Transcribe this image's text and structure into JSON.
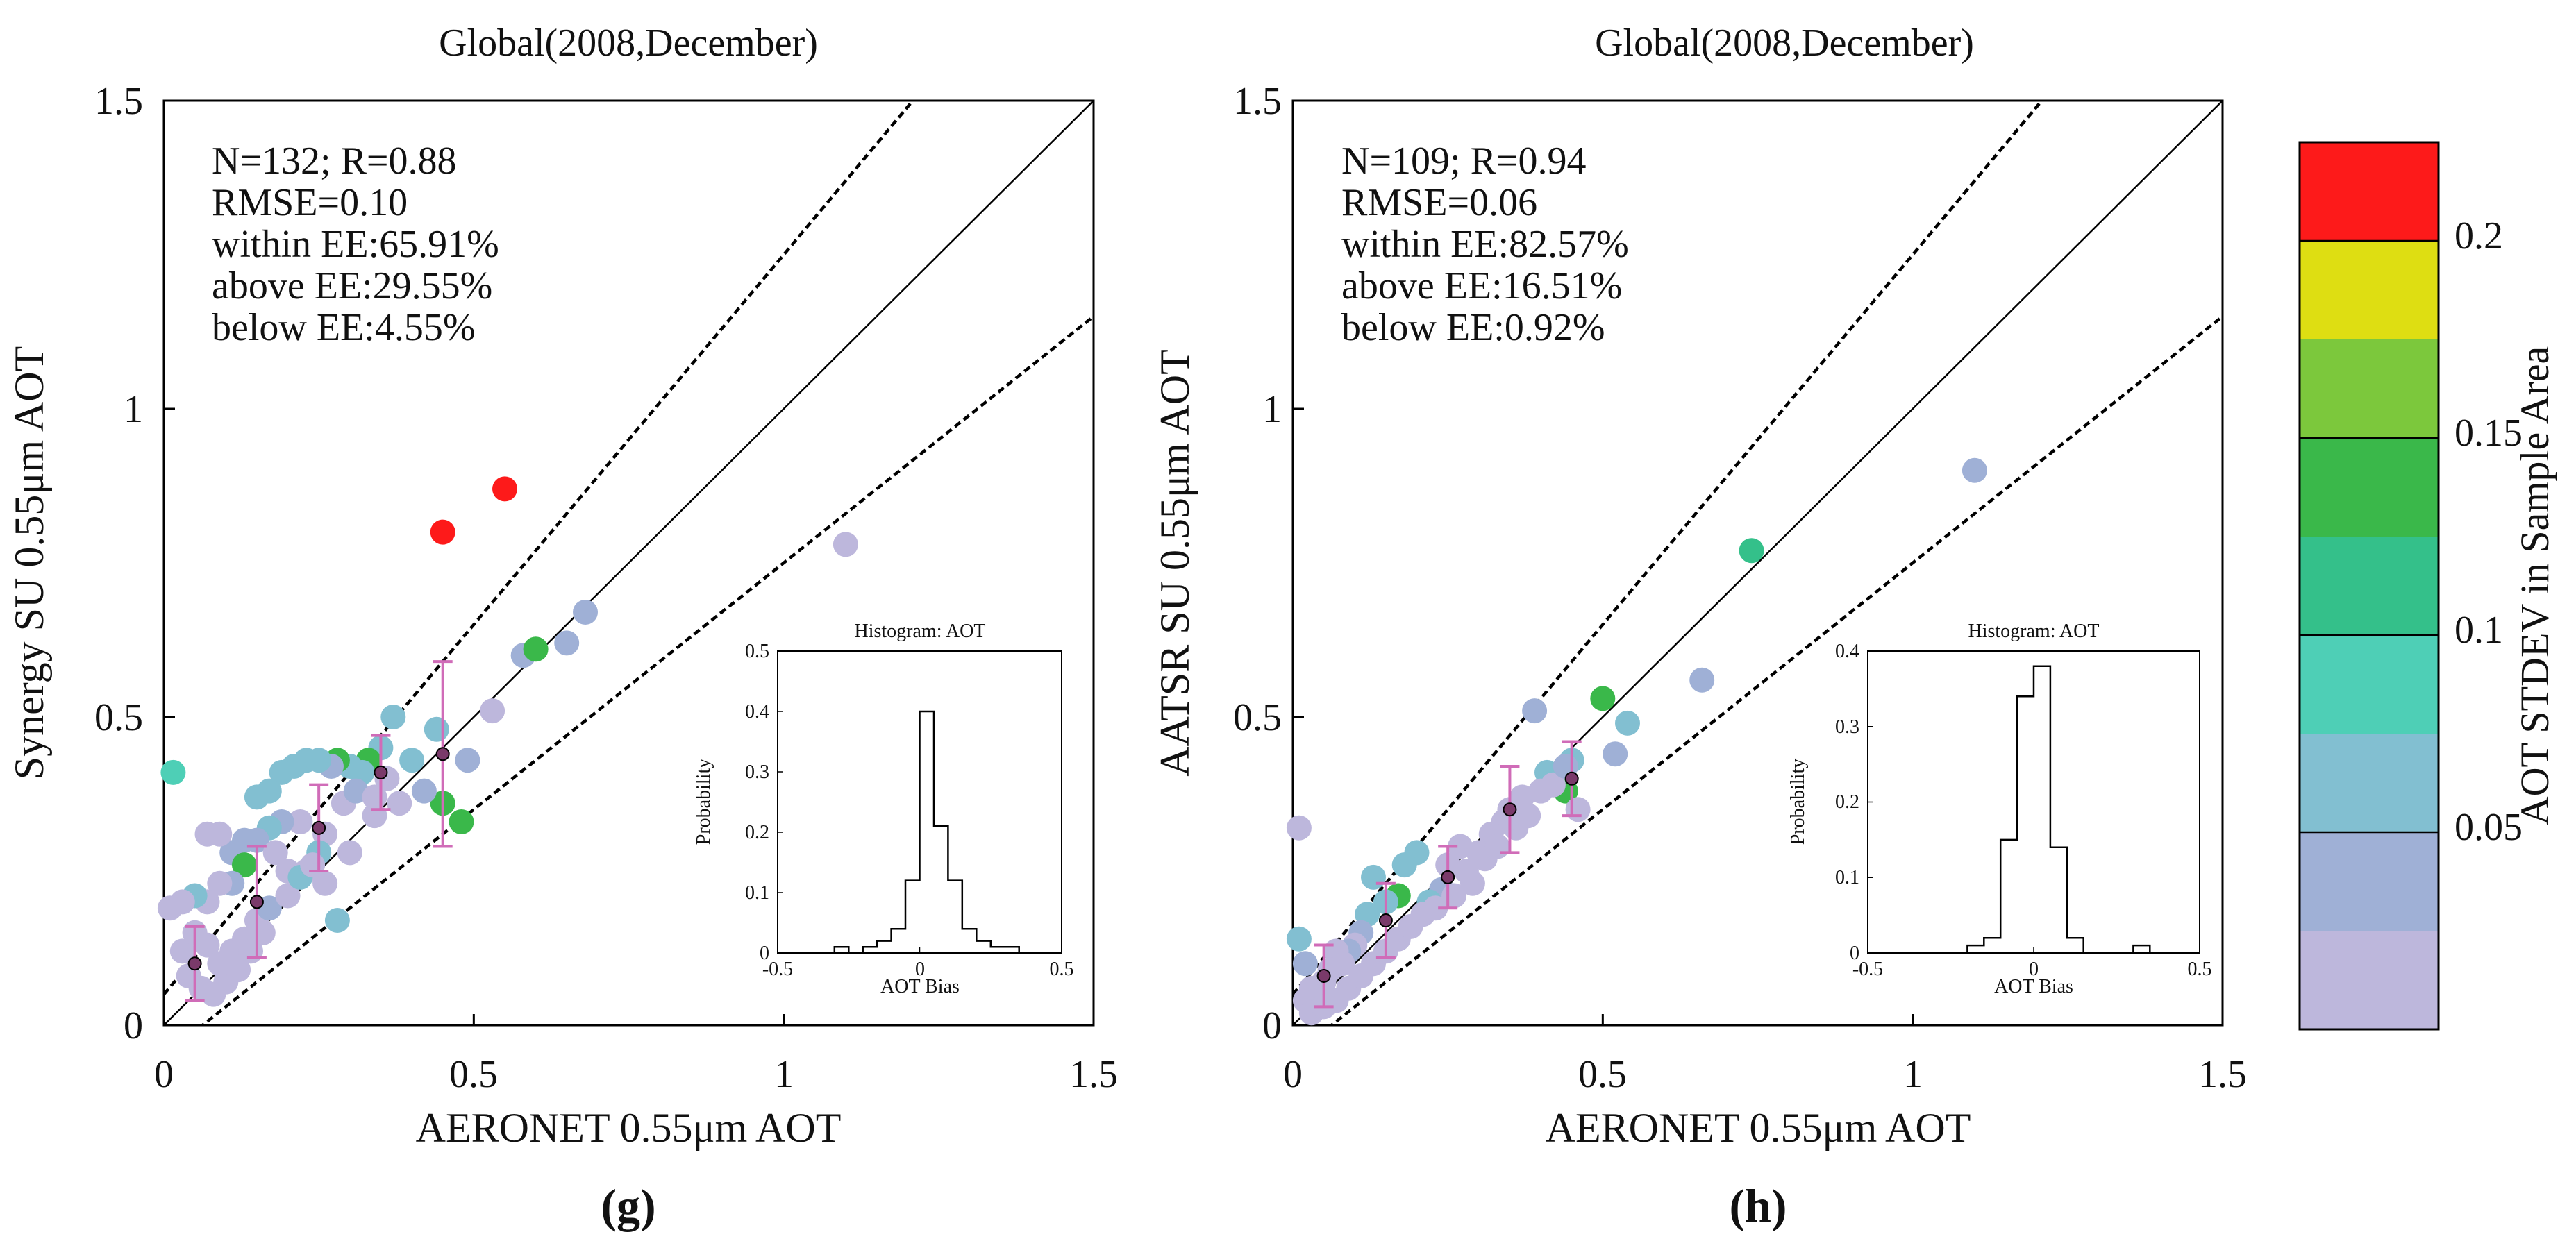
{
  "chart_data": [
    {
      "panel": "g",
      "type": "scatter",
      "title": "Global(2008,December)",
      "xlabel": "AERONET 0.55μm AOT",
      "ylabel": "Synergy SU 0.55μm AOT",
      "xlim": [
        0,
        1.5
      ],
      "ylim": [
        0,
        1.5
      ],
      "xticks": [
        "0",
        "0.5",
        "1",
        "1.5"
      ],
      "yticks": [
        "0",
        "0.5",
        "1",
        "1.5"
      ],
      "stats": [
        "N=132; R=0.88",
        "RMSE=0.10",
        "within EE:65.91%",
        "above EE:29.55%",
        "below EE:4.55%"
      ],
      "reference_lines": {
        "one_to_one": true,
        "ee_intercept": 0.05,
        "ee_slope": 0.2
      },
      "points": [
        [
          0.55,
          0.87,
          0.23
        ],
        [
          0.45,
          0.8,
          0.23
        ],
        [
          1.1,
          0.78,
          0.02
        ],
        [
          0.68,
          0.67,
          0.04
        ],
        [
          0.65,
          0.62,
          0.04
        ],
        [
          0.58,
          0.6,
          0.04
        ],
        [
          0.6,
          0.61,
          0.13
        ],
        [
          0.53,
          0.51,
          0.02
        ],
        [
          0.49,
          0.43,
          0.04
        ],
        [
          0.48,
          0.33,
          0.13
        ],
        [
          0.45,
          0.36,
          0.13
        ],
        [
          0.44,
          0.48,
          0.05
        ],
        [
          0.42,
          0.38,
          0.03
        ],
        [
          0.4,
          0.43,
          0.07
        ],
        [
          0.37,
          0.5,
          0.05
        ],
        [
          0.35,
          0.45,
          0.05
        ],
        [
          0.33,
          0.43,
          0.14
        ],
        [
          0.32,
          0.41,
          0.07
        ],
        [
          0.3,
          0.42,
          0.05
        ],
        [
          0.28,
          0.43,
          0.15
        ],
        [
          0.27,
          0.42,
          0.03
        ],
        [
          0.25,
          0.43,
          0.05
        ],
        [
          0.23,
          0.43,
          0.07
        ],
        [
          0.21,
          0.42,
          0.07
        ],
        [
          0.19,
          0.41,
          0.07
        ],
        [
          0.17,
          0.38,
          0.06
        ],
        [
          0.15,
          0.37,
          0.05
        ],
        [
          0.26,
          0.31,
          0.02
        ],
        [
          0.22,
          0.33,
          0.02
        ],
        [
          0.19,
          0.33,
          0.03
        ],
        [
          0.17,
          0.32,
          0.05
        ],
        [
          0.15,
          0.3,
          0.03
        ],
        [
          0.13,
          0.3,
          0.04
        ],
        [
          0.11,
          0.28,
          0.03
        ],
        [
          0.09,
          0.31,
          0.01
        ],
        [
          0.07,
          0.31,
          0.02
        ],
        [
          0.3,
          0.28,
          0.01
        ],
        [
          0.34,
          0.34,
          0.01
        ],
        [
          0.38,
          0.36,
          0.01
        ],
        [
          0.28,
          0.17,
          0.06
        ],
        [
          0.25,
          0.28,
          0.06
        ],
        [
          0.23,
          0.25,
          0.02
        ],
        [
          0.2,
          0.25,
          0.02
        ],
        [
          0.18,
          0.28,
          0.01
        ],
        [
          0.13,
          0.26,
          0.13
        ],
        [
          0.11,
          0.23,
          0.03
        ],
        [
          0.09,
          0.23,
          0.02
        ],
        [
          0.07,
          0.2,
          0.01
        ],
        [
          0.05,
          0.21,
          0.06
        ],
        [
          0.03,
          0.2,
          0.01
        ],
        [
          0.015,
          0.41,
          0.09
        ],
        [
          0.01,
          0.19,
          0.01
        ],
        [
          0.03,
          0.12,
          0.01
        ],
        [
          0.05,
          0.15,
          0.01
        ],
        [
          0.07,
          0.13,
          0.02
        ],
        [
          0.09,
          0.1,
          0.01
        ],
        [
          0.11,
          0.12,
          0.01
        ],
        [
          0.13,
          0.14,
          0.01
        ],
        [
          0.15,
          0.17,
          0.01
        ],
        [
          0.17,
          0.19,
          0.03
        ],
        [
          0.04,
          0.08,
          0.01
        ],
        [
          0.06,
          0.06,
          0.01
        ],
        [
          0.08,
          0.05,
          0.01
        ],
        [
          0.1,
          0.07,
          0.01
        ],
        [
          0.12,
          0.09,
          0.01
        ],
        [
          0.14,
          0.12,
          0.01
        ],
        [
          0.16,
          0.15,
          0.01
        ],
        [
          0.2,
          0.21,
          0.02
        ],
        [
          0.22,
          0.24,
          0.05
        ],
        [
          0.24,
          0.26,
          0.01
        ],
        [
          0.26,
          0.23,
          0.01
        ],
        [
          0.29,
          0.36,
          0.02
        ],
        [
          0.31,
          0.38,
          0.03
        ],
        [
          0.36,
          0.4,
          0.02
        ],
        [
          0.34,
          0.37,
          0.01
        ]
      ],
      "bin_means": [
        [
          0.05,
          0.1,
          0.06
        ],
        [
          0.15,
          0.2,
          0.09
        ],
        [
          0.25,
          0.32,
          0.07
        ],
        [
          0.35,
          0.41,
          0.06
        ],
        [
          0.45,
          0.44,
          0.15
        ]
      ],
      "inset": {
        "title": "Histogram: AOT",
        "xlabel": "AOT Bias",
        "ylabel": "Probability",
        "xlim": [
          -0.5,
          0.5
        ],
        "ylim": [
          0,
          0.5
        ],
        "xticks": [
          "-0.5",
          "0",
          "0.5"
        ],
        "yticks": [
          "0",
          "0.1",
          "0.2",
          "0.3",
          "0.4",
          "0.5"
        ],
        "edges": [
          -0.3,
          -0.25,
          -0.2,
          -0.15,
          -0.1,
          -0.05,
          0,
          0.05,
          0.1,
          0.15,
          0.2,
          0.25,
          0.3,
          0.35,
          0.4
        ],
        "probs": [
          0.01,
          0,
          0.01,
          0.02,
          0.04,
          0.12,
          0.4,
          0.21,
          0.12,
          0.04,
          0.02,
          0.01,
          0.01,
          0
        ]
      }
    },
    {
      "panel": "h",
      "type": "scatter",
      "title": "Global(2008,December)",
      "xlabel": "AERONET 0.55μm AOT",
      "ylabel": "AATSR SU 0.55μm AOT",
      "xlim": [
        0,
        1.5
      ],
      "ylim": [
        0,
        1.5
      ],
      "xticks": [
        "0",
        "0.5",
        "1",
        "1.5"
      ],
      "yticks": [
        "0",
        "0.5",
        "1",
        "1.5"
      ],
      "stats": [
        "N=109; R=0.94",
        "RMSE=0.06",
        "within EE:82.57%",
        "above EE:16.51%",
        "below EE:0.92%"
      ],
      "reference_lines": {
        "one_to_one": true,
        "ee_intercept": 0.05,
        "ee_slope": 0.2
      },
      "points": [
        [
          1.1,
          0.9,
          0.04
        ],
        [
          0.74,
          0.77,
          0.1
        ],
        [
          0.66,
          0.56,
          0.04
        ],
        [
          0.54,
          0.49,
          0.05
        ],
        [
          0.52,
          0.44,
          0.04
        ],
        [
          0.5,
          0.53,
          0.14
        ],
        [
          0.45,
          0.43,
          0.05
        ],
        [
          0.44,
          0.38,
          0.13
        ],
        [
          0.41,
          0.41,
          0.06
        ],
        [
          0.39,
          0.51,
          0.04
        ],
        [
          0.38,
          0.34,
          0.02
        ],
        [
          0.36,
          0.32,
          0.02
        ],
        [
          0.34,
          0.33,
          0.01
        ],
        [
          0.32,
          0.31,
          0.01
        ],
        [
          0.3,
          0.28,
          0.01
        ],
        [
          0.28,
          0.25,
          0.02
        ],
        [
          0.27,
          0.29,
          0.01
        ],
        [
          0.25,
          0.26,
          0.02
        ],
        [
          0.24,
          0.22,
          0.04
        ],
        [
          0.22,
          0.2,
          0.05
        ],
        [
          0.2,
          0.28,
          0.07
        ],
        [
          0.18,
          0.26,
          0.06
        ],
        [
          0.17,
          0.21,
          0.13
        ],
        [
          0.15,
          0.2,
          0.05
        ],
        [
          0.13,
          0.24,
          0.07
        ],
        [
          0.12,
          0.18,
          0.05
        ],
        [
          0.11,
          0.15,
          0.03
        ],
        [
          0.1,
          0.13,
          0.02
        ],
        [
          0.09,
          0.12,
          0.03
        ],
        [
          0.08,
          0.1,
          0.02
        ],
        [
          0.07,
          0.12,
          0.02
        ],
        [
          0.06,
          0.09,
          0.01
        ],
        [
          0.05,
          0.07,
          0.01
        ],
        [
          0.04,
          0.05,
          0.01
        ],
        [
          0.03,
          0.06,
          0.01
        ],
        [
          0.02,
          0.04,
          0.01
        ],
        [
          0.01,
          0.14,
          0.07
        ],
        [
          0.01,
          0.32,
          0.01
        ],
        [
          0.02,
          0.1,
          0.03
        ],
        [
          0.03,
          0.02,
          0.01
        ],
        [
          0.05,
          0.03,
          0.01
        ],
        [
          0.07,
          0.04,
          0.01
        ],
        [
          0.09,
          0.06,
          0.01
        ],
        [
          0.11,
          0.08,
          0.01
        ],
        [
          0.13,
          0.1,
          0.01
        ],
        [
          0.15,
          0.12,
          0.01
        ],
        [
          0.17,
          0.14,
          0.01
        ],
        [
          0.19,
          0.16,
          0.02
        ],
        [
          0.21,
          0.18,
          0.01
        ],
        [
          0.23,
          0.19,
          0.01
        ],
        [
          0.26,
          0.21,
          0.01
        ],
        [
          0.29,
          0.23,
          0.01
        ],
        [
          0.31,
          0.27,
          0.02
        ],
        [
          0.33,
          0.29,
          0.01
        ],
        [
          0.35,
          0.35,
          0.01
        ],
        [
          0.37,
          0.37,
          0.02
        ],
        [
          0.4,
          0.38,
          0.01
        ],
        [
          0.42,
          0.39,
          0.02
        ],
        [
          0.44,
          0.42,
          0.03
        ],
        [
          0.46,
          0.35,
          0.01
        ]
      ],
      "bin_means": [
        [
          0.05,
          0.08,
          0.05
        ],
        [
          0.15,
          0.17,
          0.06
        ],
        [
          0.25,
          0.24,
          0.05
        ],
        [
          0.35,
          0.35,
          0.07
        ],
        [
          0.45,
          0.4,
          0.06
        ]
      ],
      "inset": {
        "title": "Histogram: AOT",
        "xlabel": "AOT Bias",
        "ylabel": "Probability",
        "xlim": [
          -0.5,
          0.5
        ],
        "ylim": [
          0,
          0.4
        ],
        "xticks": [
          "-0.5",
          "0",
          "0.5"
        ],
        "yticks": [
          "0",
          "0.1",
          "0.2",
          "0.3",
          "0.4"
        ],
        "edges": [
          -0.2,
          -0.15,
          -0.1,
          -0.05,
          0,
          0.05,
          0.1,
          0.15,
          0.2,
          0.25,
          0.3,
          0.35,
          0.4
        ],
        "probs": [
          0.01,
          0.02,
          0.15,
          0.34,
          0.38,
          0.14,
          0.02,
          0,
          0,
          0,
          0.01,
          0
        ]
      }
    }
  ],
  "panel_labels": [
    "(g)",
    "(h)"
  ],
  "colorbar": {
    "label": "AOT STDEV in Sample Area",
    "min": 0,
    "max": 0.225,
    "ticks": [
      "0.05",
      "0.1",
      "0.15",
      "0.2"
    ],
    "tick_values": [
      0.05,
      0.1,
      0.15,
      0.2
    ],
    "bin_width": 0.025,
    "colors": [
      "#bdb7dc",
      "#9fb0d6",
      "#82bfd1",
      "#4ecfb6",
      "#34c08a",
      "#3ab84a",
      "#7cc83c",
      "#dede12",
      "#fd1a1a"
    ]
  },
  "styles": {
    "mean_marker": "#7a3a6a",
    "errorbar": "#d06cb8"
  }
}
